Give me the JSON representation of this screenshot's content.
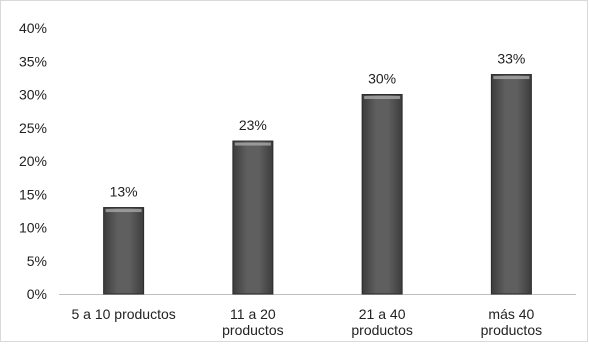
{
  "chart_data": {
    "type": "bar",
    "categories": [
      [
        "5 a 10 productos"
      ],
      [
        "11 a 20",
        "productos"
      ],
      [
        "21 a 40",
        "productos"
      ],
      [
        "más 40",
        "productos"
      ]
    ],
    "values": [
      13,
      23,
      30,
      33
    ],
    "data_labels": [
      "13%",
      "23%",
      "30%",
      "33%"
    ],
    "yticks": [
      "0%",
      "5%",
      "10%",
      "15%",
      "20%",
      "25%",
      "30%",
      "35%",
      "40%"
    ],
    "ylim": [
      0,
      40
    ],
    "grid": false,
    "legend": "none",
    "colors": {
      "bar": "#5f5f5f",
      "bar_edge": "#2b2b2b",
      "bar_highlight": "#a8a8a8",
      "axis": "#bfbfbf"
    }
  }
}
